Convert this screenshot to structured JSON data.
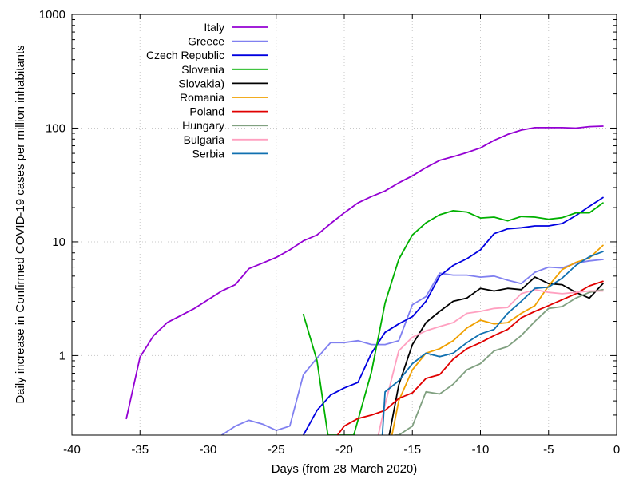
{
  "chart_data": {
    "type": "line",
    "xlabel": "Days (from 28 March 2020)",
    "ylabel": "Daily increase in Confirmed COVID-19 cases per million inhabitants",
    "xlim": [
      -40,
      0
    ],
    "ylim": [
      0.2,
      1000
    ],
    "yscale": "log",
    "x_ticks": [
      -40,
      -35,
      -30,
      -25,
      -20,
      -15,
      -10,
      -5,
      0
    ],
    "y_ticks": [
      1,
      10,
      100,
      1000
    ],
    "grid": true,
    "legend_position": "top-left",
    "series": [
      {
        "name": "Italy",
        "color": "#9400d3",
        "points": [
          [
            -36,
            0.28
          ],
          [
            -35,
            0.97
          ],
          [
            -34,
            1.5
          ],
          [
            -33,
            1.95
          ],
          [
            -32,
            2.25
          ],
          [
            -31,
            2.6
          ],
          [
            -30,
            3.1
          ],
          [
            -29,
            3.7
          ],
          [
            -28,
            4.2
          ],
          [
            -27,
            5.8
          ],
          [
            -26,
            6.5
          ],
          [
            -25,
            7.3
          ],
          [
            -24,
            8.5
          ],
          [
            -23,
            10.2
          ],
          [
            -22,
            11.5
          ],
          [
            -21,
            14.5
          ],
          [
            -20,
            18
          ],
          [
            -19,
            22
          ],
          [
            -18,
            25
          ],
          [
            -17,
            28
          ],
          [
            -16,
            33
          ],
          [
            -15,
            38
          ],
          [
            -14,
            45
          ],
          [
            -13,
            52
          ],
          [
            -12,
            56
          ],
          [
            -11,
            61
          ],
          [
            -10,
            67
          ],
          [
            -9,
            78
          ],
          [
            -8,
            88
          ],
          [
            -7,
            96
          ],
          [
            -6,
            101
          ],
          [
            -5,
            101
          ],
          [
            -4,
            101
          ],
          [
            -3,
            100
          ],
          [
            -2,
            103
          ],
          [
            -1,
            104
          ]
        ]
      },
      {
        "name": "Greece",
        "color": "#8080f0",
        "points": [
          [
            -29,
            0.2
          ],
          [
            -28,
            0.24
          ],
          [
            -27,
            0.27
          ],
          [
            -26,
            0.25
          ],
          [
            -25,
            0.22
          ],
          [
            -24,
            0.24
          ],
          [
            -23,
            0.68
          ],
          [
            -22,
            0.95
          ],
          [
            -21,
            1.3
          ],
          [
            -20,
            1.3
          ],
          [
            -19,
            1.35
          ],
          [
            -18,
            1.25
          ],
          [
            -17,
            1.25
          ],
          [
            -16,
            1.35
          ],
          [
            -15,
            2.8
          ],
          [
            -14,
            3.3
          ],
          [
            -13,
            5.3
          ],
          [
            -12,
            5.1
          ],
          [
            -11,
            5.1
          ],
          [
            -10,
            4.9
          ],
          [
            -9,
            5.0
          ],
          [
            -8,
            4.6
          ],
          [
            -7,
            4.3
          ],
          [
            -6,
            5.4
          ],
          [
            -5,
            6.0
          ],
          [
            -4,
            5.9
          ],
          [
            -3,
            6.5
          ],
          [
            -2,
            6.8
          ],
          [
            -1,
            7.0
          ]
        ]
      },
      {
        "name": "Czech Republic",
        "color": "#0000e0",
        "points": [
          [
            -23,
            0.2
          ],
          [
            -22,
            0.33
          ],
          [
            -21,
            0.45
          ],
          [
            -20,
            0.52
          ],
          [
            -19,
            0.58
          ],
          [
            -18,
            1.05
          ],
          [
            -17,
            1.6
          ],
          [
            -16,
            1.9
          ],
          [
            -15,
            2.2
          ],
          [
            -14,
            3.0
          ],
          [
            -13,
            5.0
          ],
          [
            -12,
            6.2
          ],
          [
            -11,
            7.1
          ],
          [
            -10,
            8.5
          ],
          [
            -9,
            11.8
          ],
          [
            -8,
            13
          ],
          [
            -7,
            13.3
          ],
          [
            -6,
            13.8
          ],
          [
            -5,
            13.8
          ],
          [
            -4,
            14.5
          ],
          [
            -3,
            17
          ],
          [
            -2,
            20.5
          ],
          [
            -1,
            24.5
          ]
        ]
      },
      {
        "name": "Slovenia",
        "color": "#00b000",
        "points": [
          [
            -23,
            2.3
          ],
          [
            -22,
            0.9
          ],
          [
            -21.2,
            0.2
          ],
          [
            -19.3,
            0.2
          ],
          [
            -18,
            0.72
          ],
          [
            -17,
            2.9
          ],
          [
            -16,
            7.0
          ],
          [
            -15,
            11.5
          ],
          [
            -14,
            14.7
          ],
          [
            -13,
            17.3
          ],
          [
            -12,
            18.8
          ],
          [
            -11,
            18.3
          ],
          [
            -10,
            16.2
          ],
          [
            -9,
            16.5
          ],
          [
            -8,
            15.3
          ],
          [
            -7,
            16.7
          ],
          [
            -6,
            16.5
          ],
          [
            -5,
            15.8
          ],
          [
            -4,
            16.3
          ],
          [
            -3,
            18
          ],
          [
            -2,
            18
          ],
          [
            -1,
            22
          ]
        ]
      },
      {
        "name": "Slovakia)",
        "color": "#000000",
        "points": [
          [
            -16.7,
            0.2
          ],
          [
            -16,
            0.55
          ],
          [
            -15,
            1.25
          ],
          [
            -14,
            1.95
          ],
          [
            -13,
            2.45
          ],
          [
            -12,
            3.0
          ],
          [
            -11,
            3.2
          ],
          [
            -10,
            3.9
          ],
          [
            -9,
            3.7
          ],
          [
            -8,
            3.9
          ],
          [
            -7,
            3.8
          ],
          [
            -6,
            4.9
          ],
          [
            -5,
            4.3
          ],
          [
            -4,
            4.2
          ],
          [
            -3,
            3.6
          ],
          [
            -2,
            3.2
          ],
          [
            -1,
            4.3
          ]
        ]
      },
      {
        "name": "Romania",
        "color": "#f0a000",
        "points": [
          [
            -16.5,
            0.2
          ],
          [
            -16,
            0.4
          ],
          [
            -15,
            0.75
          ],
          [
            -14,
            1.05
          ],
          [
            -13,
            1.15
          ],
          [
            -12,
            1.35
          ],
          [
            -11,
            1.75
          ],
          [
            -10,
            2.05
          ],
          [
            -9,
            1.9
          ],
          [
            -8,
            1.95
          ],
          [
            -7,
            2.35
          ],
          [
            -6,
            2.75
          ],
          [
            -5,
            4.1
          ],
          [
            -4,
            5.7
          ],
          [
            -3,
            6.6
          ],
          [
            -2,
            7.2
          ],
          [
            -1,
            9.3
          ]
        ]
      },
      {
        "name": "Poland",
        "color": "#e00000",
        "points": [
          [
            -20.5,
            0.2
          ],
          [
            -20,
            0.24
          ],
          [
            -19,
            0.28
          ],
          [
            -18,
            0.3
          ],
          [
            -17,
            0.33
          ],
          [
            -16,
            0.42
          ],
          [
            -15,
            0.47
          ],
          [
            -14,
            0.63
          ],
          [
            -13,
            0.68
          ],
          [
            -12,
            0.93
          ],
          [
            -11,
            1.15
          ],
          [
            -10,
            1.3
          ],
          [
            -9,
            1.5
          ],
          [
            -8,
            1.7
          ],
          [
            -7,
            2.15
          ],
          [
            -6,
            2.45
          ],
          [
            -5,
            2.75
          ],
          [
            -4,
            3.1
          ],
          [
            -3,
            3.5
          ],
          [
            -2,
            4.1
          ],
          [
            -1,
            4.5
          ]
        ]
      },
      {
        "name": "Hungary",
        "color": "#80a080",
        "points": [
          [
            -16.3,
            0.2
          ],
          [
            -16,
            0.2
          ],
          [
            -15,
            0.24
          ],
          [
            -14,
            0.48
          ],
          [
            -13,
            0.46
          ],
          [
            -12,
            0.56
          ],
          [
            -11,
            0.75
          ],
          [
            -10,
            0.85
          ],
          [
            -9,
            1.1
          ],
          [
            -8,
            1.2
          ],
          [
            -7,
            1.5
          ],
          [
            -6,
            2.0
          ],
          [
            -5,
            2.6
          ],
          [
            -4,
            2.7
          ],
          [
            -3,
            3.2
          ],
          [
            -2,
            3.6
          ],
          [
            -1,
            3.8
          ]
        ]
      },
      {
        "name": "Bulgaria",
        "color": "#ffa0c0",
        "points": [
          [
            -17.5,
            0.2
          ],
          [
            -17,
            0.37
          ],
          [
            -16,
            1.1
          ],
          [
            -15,
            1.45
          ],
          [
            -14,
            1.65
          ],
          [
            -13,
            1.8
          ],
          [
            -12,
            1.95
          ],
          [
            -11,
            2.35
          ],
          [
            -10,
            2.45
          ],
          [
            -9,
            2.6
          ],
          [
            -8,
            2.65
          ],
          [
            -7,
            3.5
          ],
          [
            -6,
            3.8
          ],
          [
            -5,
            3.6
          ],
          [
            -4,
            3.5
          ],
          [
            -3,
            3.6
          ],
          [
            -2,
            3.7
          ],
          [
            -1,
            3.7
          ]
        ]
      },
      {
        "name": "Serbia",
        "color": "#1070b0",
        "points": [
          [
            -17.2,
            0.2
          ],
          [
            -17,
            0.48
          ],
          [
            -16,
            0.6
          ],
          [
            -15,
            0.85
          ],
          [
            -14,
            1.05
          ],
          [
            -13,
            0.98
          ],
          [
            -12,
            1.05
          ],
          [
            -11,
            1.3
          ],
          [
            -10,
            1.55
          ],
          [
            -9,
            1.7
          ],
          [
            -8,
            2.35
          ],
          [
            -7,
            3.0
          ],
          [
            -6,
            3.9
          ],
          [
            -5,
            4.0
          ],
          [
            -4,
            4.8
          ],
          [
            -3,
            6.2
          ],
          [
            -2,
            7.4
          ],
          [
            -1,
            8.2
          ]
        ]
      }
    ]
  }
}
